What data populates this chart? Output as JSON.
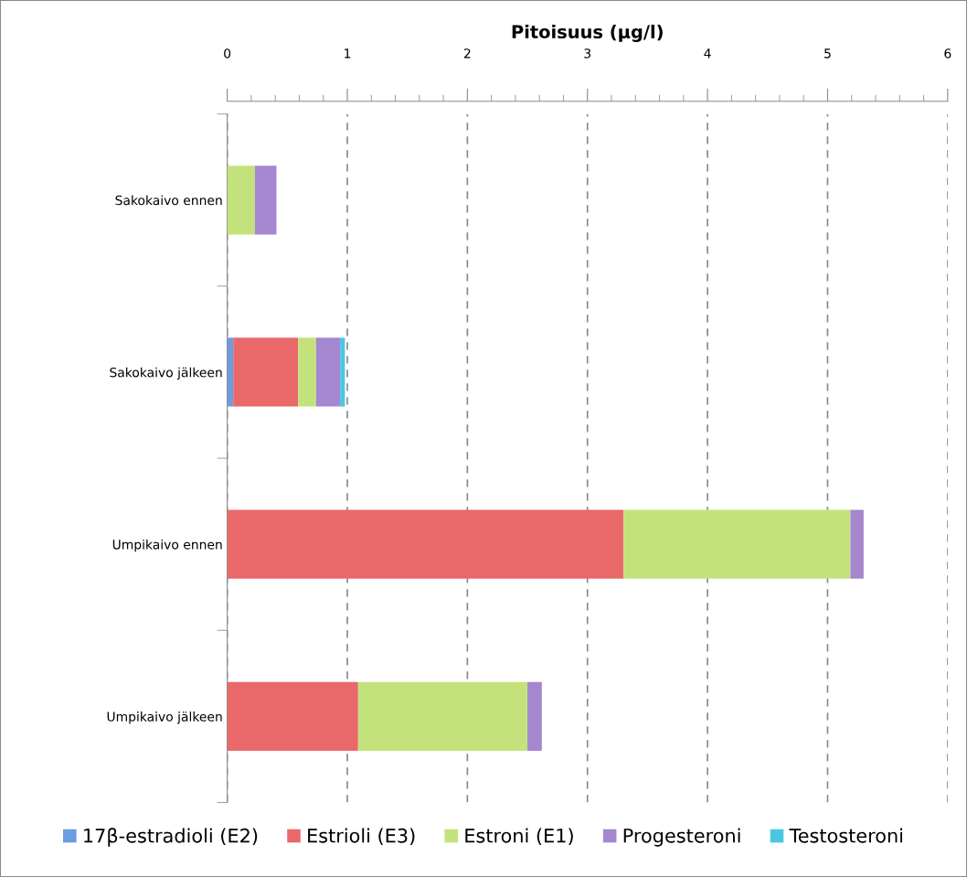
{
  "chart_data": {
    "type": "bar",
    "orientation": "horizontal",
    "stacked": true,
    "xlabel": "Pitoisuus (µg/l)",
    "categories": [
      "Sakokaivo ennen",
      "Sakokaivo jälkeen",
      "Umpikaivo ennen",
      "Umpikaivo jälkeen"
    ],
    "series": [
      {
        "name": "17β-estradioli (E2)",
        "color": "#6b9de0",
        "values": [
          0,
          0.05,
          0,
          0
        ]
      },
      {
        "name": "Estrioli (E3)",
        "color": "#e9696b",
        "values": [
          0,
          0.54,
          3.3,
          1.09
        ]
      },
      {
        "name": "Estroni (E1)",
        "color": "#c4e27c",
        "values": [
          0.23,
          0.15,
          1.89,
          1.41
        ]
      },
      {
        "name": "Progesteroni",
        "color": "#a487cf",
        "values": [
          0.18,
          0.2,
          0.11,
          0.12
        ]
      },
      {
        "name": "Testosteroni",
        "color": "#4cc6e0",
        "values": [
          0,
          0.04,
          0,
          0
        ]
      }
    ],
    "xlim": [
      0,
      6
    ],
    "xticks": [
      0,
      1,
      2,
      3,
      4,
      5,
      6
    ],
    "grid": "x",
    "legend": "bottom"
  }
}
